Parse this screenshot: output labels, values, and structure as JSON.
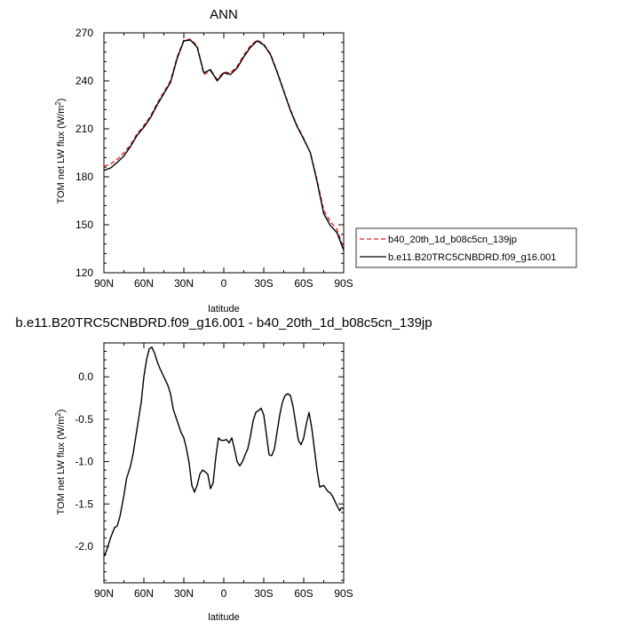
{
  "chart_data": [
    {
      "type": "line",
      "title": "ANN",
      "xlabel": "latitude",
      "ylabel_main": "TOM net LW flux (W/m",
      "ylabel_sup": "2",
      "ylabel_close": ")",
      "x": [
        90,
        85,
        80,
        75,
        70,
        65,
        60,
        55,
        50,
        45,
        40,
        35,
        30,
        25,
        20,
        15,
        10,
        5,
        0,
        -5,
        -10,
        -15,
        -20,
        -25,
        -30,
        -35,
        -40,
        -45,
        -50,
        -55,
        -60,
        -65,
        -70,
        -75,
        -80,
        -85,
        -90
      ],
      "xticks": [
        90,
        60,
        30,
        0,
        -30,
        -60,
        -90
      ],
      "xticklabels": [
        "90N",
        "60N",
        "30N",
        "0",
        "30S",
        "60S",
        "90S"
      ],
      "xlim": [
        90,
        -90
      ],
      "ylim": [
        120,
        270
      ],
      "yticks": [
        120,
        150,
        180,
        210,
        240,
        270
      ],
      "yticklabels": [
        "120",
        "150",
        "180",
        "210",
        "240",
        "270"
      ],
      "series": [
        {
          "name": "b40_20th_1d_b08c5cn_139jp",
          "color": "#e0201b",
          "dash": "dashed",
          "values": [
            186.5,
            188,
            191,
            195,
            200,
            207,
            212,
            218,
            226,
            233,
            240,
            255,
            265.5,
            266,
            262,
            244,
            246,
            241,
            245.5,
            245,
            249,
            256,
            262,
            265.5,
            263,
            257,
            246,
            234,
            222,
            212,
            204,
            195,
            178,
            159,
            152,
            147,
            135
          ]
        },
        {
          "name": "b.e11.B20TRC5CNBDRD.f09_g16.001",
          "color": "#000000",
          "dash": "solid",
          "values": [
            184,
            185.5,
            189,
            193,
            199,
            206,
            211,
            217,
            225,
            232,
            239,
            254,
            265,
            265.5,
            261,
            245,
            247,
            240,
            245,
            244,
            248,
            255,
            261,
            265,
            262.5,
            256.5,
            245.5,
            233.5,
            221.5,
            211.5,
            203.5,
            195,
            177,
            157,
            149.5,
            145,
            134
          ]
        }
      ],
      "legend_position": "right"
    },
    {
      "type": "line",
      "title": "b.e11.B20TRC5CNBDRD.f09_g16.001 - b40_20th_1d_b08c5cn_139jp",
      "xlabel": "latitude",
      "ylabel_main": "TOM net LW flux (W/m",
      "ylabel_sup": "2",
      "ylabel_close": ")",
      "x": [
        90,
        88,
        85,
        82,
        80,
        78,
        75,
        73,
        70,
        68,
        65,
        62,
        60,
        58,
        56,
        54,
        52,
        50,
        48,
        45,
        42,
        40,
        38,
        35,
        32,
        30,
        28,
        26,
        24,
        22,
        20,
        18,
        16,
        14,
        12,
        10,
        8,
        6,
        4,
        2,
        0,
        -2,
        -4,
        -6,
        -8,
        -10,
        -12,
        -14,
        -16,
        -18,
        -20,
        -22,
        -24,
        -26,
        -28,
        -30,
        -32,
        -34,
        -36,
        -38,
        -40,
        -42,
        -44,
        -46,
        -48,
        -50,
        -52,
        -54,
        -56,
        -58,
        -60,
        -62,
        -64,
        -66,
        -68,
        -70,
        -72,
        -75,
        -78,
        -80,
        -82,
        -85,
        -87,
        -88,
        -90
      ],
      "xticks": [
        90,
        60,
        30,
        0,
        -30,
        -60,
        -90
      ],
      "xticklabels": [
        "90N",
        "60N",
        "30N",
        "0",
        "30S",
        "60S",
        "90S"
      ],
      "xlim": [
        90,
        -90
      ],
      "ylim": [
        -2.43,
        0.4
      ],
      "yticks": [
        -2.0,
        -1.5,
        -1.0,
        -0.5,
        0.0
      ],
      "yticklabels": [
        "-2.0",
        "-1.5",
        "-1.0",
        "-0.5",
        "0.0"
      ],
      "series": [
        {
          "name": "",
          "color": "#000000",
          "dash": "solid",
          "values": [
            -2.12,
            -2.05,
            -1.9,
            -1.78,
            -1.76,
            -1.65,
            -1.4,
            -1.2,
            -1.05,
            -0.9,
            -0.6,
            -0.3,
            0.0,
            0.2,
            0.33,
            0.35,
            0.28,
            0.18,
            0.1,
            0.0,
            -0.1,
            -0.2,
            -0.38,
            -0.52,
            -0.66,
            -0.72,
            -0.85,
            -1.02,
            -1.28,
            -1.36,
            -1.28,
            -1.15,
            -1.1,
            -1.12,
            -1.15,
            -1.32,
            -1.25,
            -0.95,
            -0.72,
            -0.75,
            -0.75,
            -0.74,
            -0.78,
            -0.72,
            -0.85,
            -1.0,
            -1.05,
            -1.0,
            -0.92,
            -0.85,
            -0.7,
            -0.52,
            -0.42,
            -0.4,
            -0.37,
            -0.45,
            -0.68,
            -0.92,
            -0.93,
            -0.85,
            -0.65,
            -0.45,
            -0.3,
            -0.22,
            -0.2,
            -0.22,
            -0.35,
            -0.55,
            -0.75,
            -0.8,
            -0.72,
            -0.55,
            -0.42,
            -0.6,
            -0.85,
            -1.1,
            -1.3,
            -1.28,
            -1.35,
            -1.37,
            -1.42,
            -1.52,
            -1.58,
            -1.55,
            -1.55
          ]
        }
      ]
    }
  ]
}
